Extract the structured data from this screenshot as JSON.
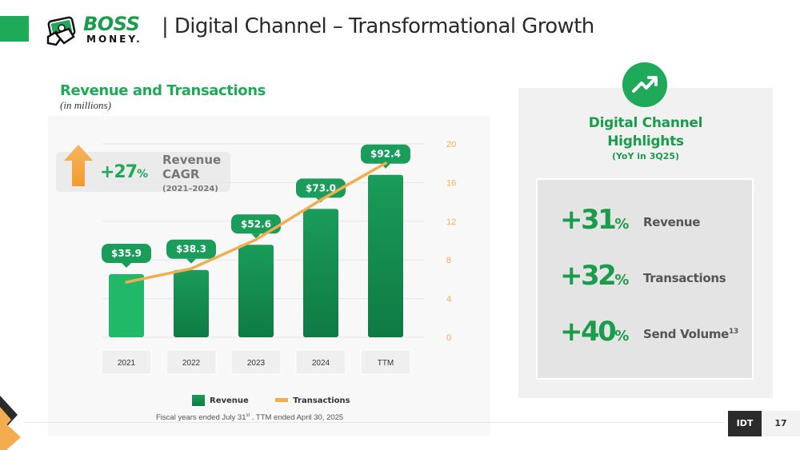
{
  "header": {
    "logo_top": "BOSS",
    "logo_bottom": "MONEY.",
    "title": "| Digital Channel – Transformational Growth"
  },
  "left": {
    "title": "Revenue and Transactions",
    "subtitle": "(in millions)",
    "cagr": {
      "value": "+27",
      "pct": "%",
      "label": "Revenue CAGR",
      "years": "(2021–2024)"
    },
    "legend": {
      "revenue": "Revenue",
      "transactions": "Transactions"
    },
    "footnote": {
      "a": "Fiscal years  ended July 31",
      "sup": "st",
      "b": " .  TTM ended April 30, 2025"
    }
  },
  "chart_data": {
    "type": "bar",
    "title": "Revenue and Transactions",
    "subtitle": "(in millions)",
    "categories": [
      "2021",
      "2022",
      "2023",
      "2024",
      "TTM"
    ],
    "series": [
      {
        "name": "Revenue",
        "type": "bar",
        "values": [
          35.9,
          38.3,
          52.6,
          73.0,
          92.4
        ],
        "labels": [
          "$35.9",
          "$38.3",
          "$52.6",
          "$73.0",
          "$92.4"
        ]
      },
      {
        "name": "Transactions",
        "type": "line",
        "axis": "right",
        "values": [
          5.7,
          7.1,
          10.1,
          14.2,
          18.0
        ]
      }
    ],
    "y2_ticks": [
      "0",
      "4",
      "8",
      "12",
      "16",
      "20"
    ],
    "y2lim": [
      0,
      20
    ],
    "legend": "bottom",
    "colors": {
      "bar_top": "#1a9c5a",
      "bar_bottom": "#0f7a44",
      "bar_first": "#22b86a",
      "line": "#f3ad4f",
      "label_bg": "#1a9c5a",
      "tick": "#f3ad4f"
    }
  },
  "right": {
    "title_line1": "Digital Channel",
    "title_line2": "Highlights",
    "subtitle": "(YoY in 3Q25)",
    "items": [
      {
        "value": "+31",
        "pct": "%",
        "label": "Revenue",
        "sup": ""
      },
      {
        "value": "+32",
        "pct": "%",
        "label": "Transactions",
        "sup": ""
      },
      {
        "value": "+40",
        "pct": "%",
        "label": "Send Volume",
        "sup": "13"
      }
    ]
  },
  "footer": {
    "company": "IDT",
    "page": "17"
  },
  "colors": {
    "brand_green": "#1faa5a",
    "accent_orange": "#f3ad4f",
    "dark": "#2b2b2b"
  }
}
